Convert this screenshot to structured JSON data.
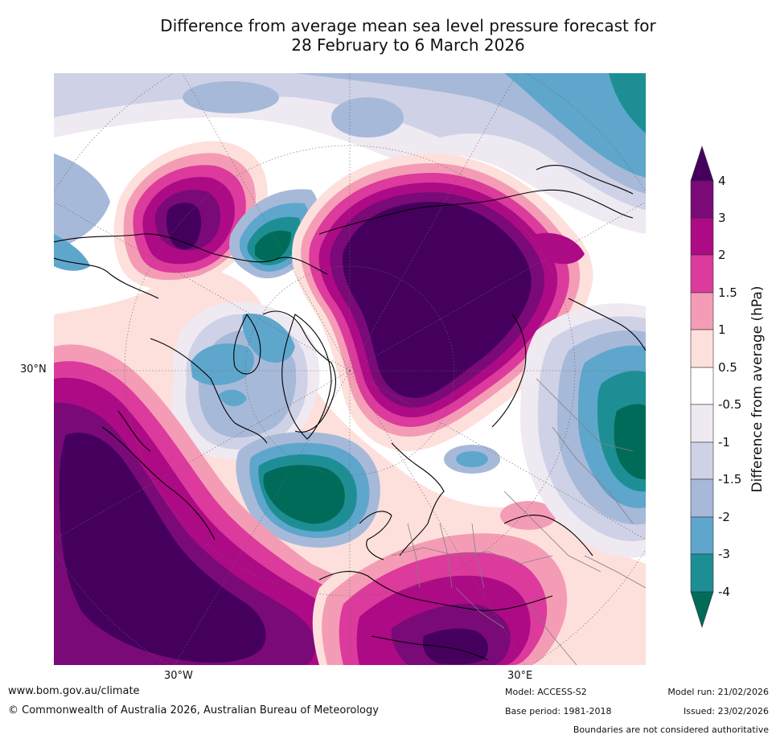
{
  "title": {
    "line1": "Difference from average mean sea level pressure forecast for",
    "line2": "28 February to 6 March 2026"
  },
  "map": {
    "lon_labels": [
      "30°W",
      "30°E"
    ],
    "lat_labels": [
      "30°N"
    ]
  },
  "colorbar": {
    "title": "Difference from average (hPa)",
    "ticks": [
      "4",
      "3",
      "2",
      "1.5",
      "1",
      "0.5",
      "-0.5",
      "-1",
      "-1.5",
      "-2",
      "-3",
      "-4"
    ],
    "colors": {
      "above_4": "#45005e",
      "3_to_4": "#7a0a78",
      "2_to_3": "#ad0a86",
      "1_5_to_2": "#dc3a9c",
      "1_to_1_5": "#f49cb6",
      "0_5_to_1": "#fde0dc",
      "neutral": "#ffffff",
      "m1_to_m0_5": "#efe9f2",
      "m1_5_to_m1": "#cfd2e6",
      "m2_to_m1_5": "#a7b9d9",
      "m3_to_m2": "#5fa6cc",
      "m4_to_m3": "#1d8f94",
      "below_m4": "#016b5a"
    }
  },
  "footer": {
    "website": "www.bom.gov.au/climate",
    "copyright": "© Commonwealth of Australia 2026, Australian Bureau of Meteorology",
    "model": "Model: ACCESS-S2",
    "base_period": "Base period: 1981-2018",
    "model_run": "Model run: 21/02/2026",
    "issued": "Issued: 23/02/2026",
    "disclaimer": "Boundaries are not considered authoritative"
  }
}
